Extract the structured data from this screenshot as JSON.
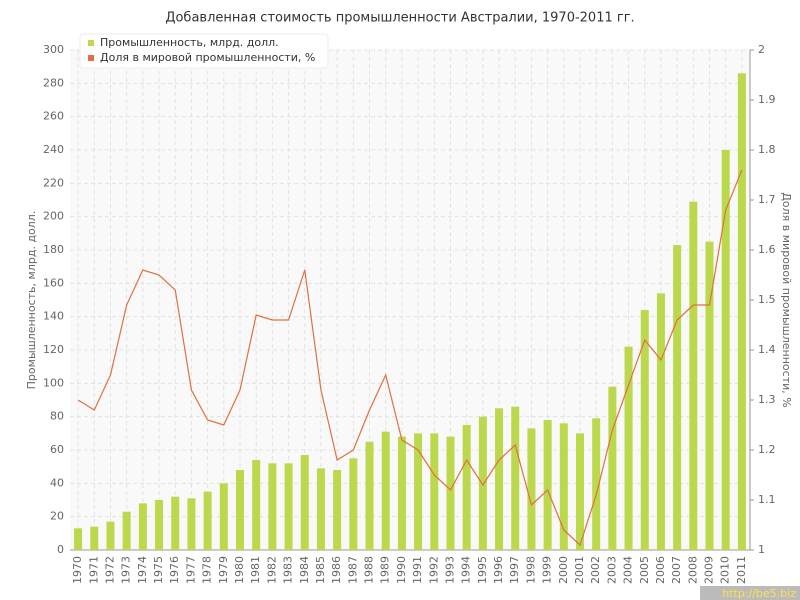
{
  "chart_data": {
    "type": "bar_line",
    "title": "Добавленная стоимость промышленности Австралии, 1970-2011 гг.",
    "ylabel": "Промышленность, млрд. долл.",
    "y2label": "Доля в мировой промышленности, %",
    "categories": [
      "1970",
      "1971",
      "1972",
      "1973",
      "1974",
      "1975",
      "1976",
      "1977",
      "1978",
      "1979",
      "1980",
      "1981",
      "1982",
      "1983",
      "1984",
      "1985",
      "1986",
      "1987",
      "1988",
      "1989",
      "1990",
      "1991",
      "1992",
      "1993",
      "1994",
      "1995",
      "1996",
      "1997",
      "1998",
      "1999",
      "2000",
      "2001",
      "2002",
      "2003",
      "2004",
      "2005",
      "2006",
      "2007",
      "2008",
      "2009",
      "2010",
      "2011"
    ],
    "series": [
      {
        "name": "Промышленность, млрд. долл.",
        "color": "#bcd84c",
        "type": "bar",
        "values": [
          13,
          14,
          17,
          23,
          28,
          30,
          32,
          31,
          35,
          40,
          48,
          54,
          52,
          52,
          57,
          49,
          48,
          55,
          65,
          71,
          68,
          70,
          70,
          68,
          75,
          80,
          85,
          86,
          73,
          78,
          76,
          70,
          79,
          98,
          122,
          144,
          154,
          183,
          209,
          185,
          240,
          286
        ]
      },
      {
        "name": "Доля в мировой промышленности, %",
        "color": "#e07040",
        "type": "line",
        "axis": "y2",
        "values": [
          1.3,
          1.28,
          1.35,
          1.49,
          1.56,
          1.55,
          1.52,
          1.32,
          1.26,
          1.25,
          1.32,
          1.47,
          1.46,
          1.46,
          1.56,
          1.32,
          1.18,
          1.2,
          1.28,
          1.35,
          1.22,
          1.2,
          1.15,
          1.12,
          1.18,
          1.13,
          1.18,
          1.21,
          1.09,
          1.12,
          1.04,
          1.01,
          1.11,
          1.24,
          1.33,
          1.42,
          1.38,
          1.46,
          1.49,
          1.49,
          1.68,
          1.76
        ]
      }
    ],
    "ylim": [
      0,
      300
    ],
    "yticks": [
      0,
      20,
      40,
      60,
      80,
      100,
      120,
      140,
      160,
      180,
      200,
      220,
      240,
      260,
      280,
      300
    ],
    "y2lim": [
      1,
      2
    ],
    "y2ticks": [
      1,
      1.1,
      1.2,
      1.3,
      1.4,
      1.5,
      1.6,
      1.7,
      1.8,
      1.9,
      2
    ],
    "grid": true,
    "legend": "top-left",
    "watermark": "http://be5.biz"
  }
}
